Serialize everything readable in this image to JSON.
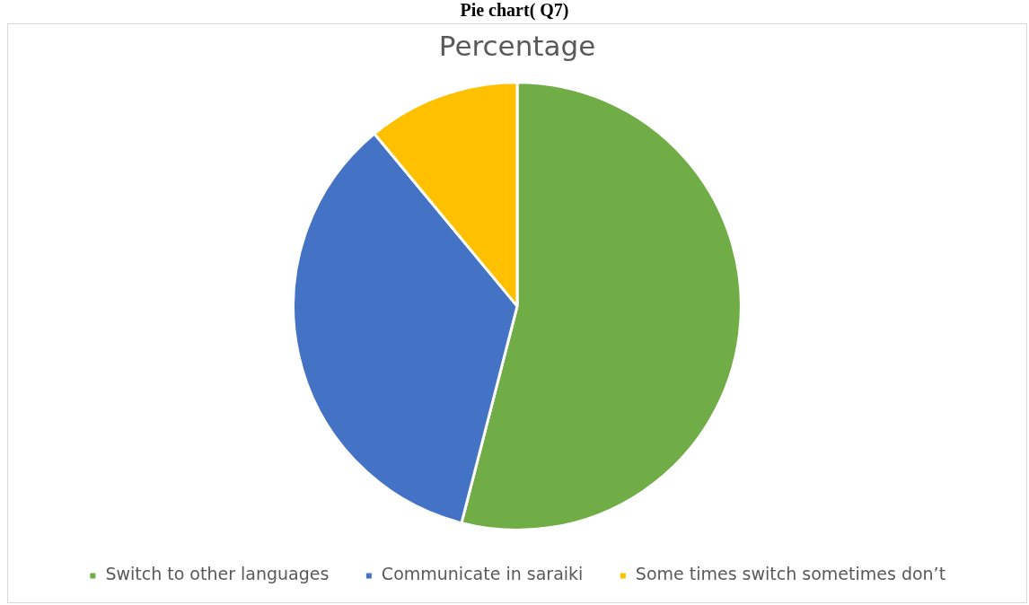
{
  "chart_data": {
    "type": "pie",
    "title": "Percentage",
    "annotations": [
      "Pie chart( Q7)"
    ],
    "categories": [
      "Switch to other languages",
      "Communicate in saraiki",
      "Some times switch sometimes don’t"
    ],
    "values": [
      54,
      35,
      11
    ],
    "colors": [
      "#70ad47",
      "#4472c4",
      "#ffc000"
    ],
    "legend": "bottom"
  }
}
